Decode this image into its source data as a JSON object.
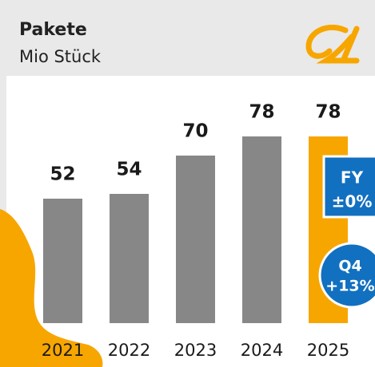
{
  "chart_data": {
    "type": "bar",
    "title": "Pakete",
    "subtitle": "Mio Stück",
    "categories": [
      "2021",
      "2022",
      "2023",
      "2024",
      "2025"
    ],
    "values": [
      52,
      54,
      70,
      78,
      78
    ],
    "colors": [
      "#878787",
      "#878787",
      "#878787",
      "#878787",
      "#f7a600"
    ],
    "annotations": [
      {
        "lines": [
          "FY",
          "±0%"
        ]
      },
      {
        "lines": [
          "Q4",
          "+13%"
        ]
      }
    ]
  }
}
